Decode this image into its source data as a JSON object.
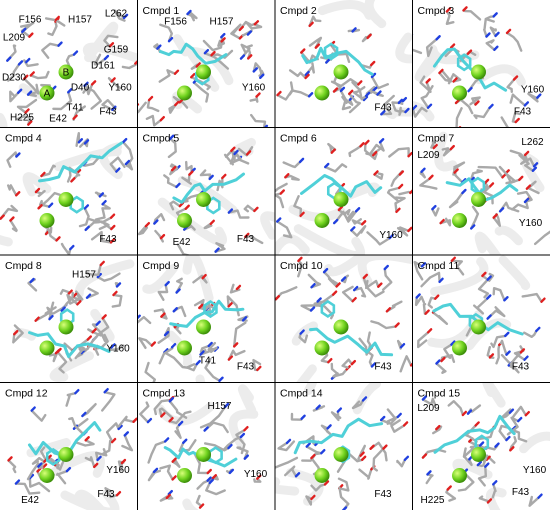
{
  "panels": [
    {
      "labels": [
        "F156",
        "H157",
        "L262",
        "L209",
        "G159",
        "D161",
        "D230",
        "D40",
        "Y160",
        "H225",
        "E42",
        "T41",
        "F43"
      ],
      "sphere_labels": [
        "A",
        "B"
      ]
    },
    {
      "title": "Cmpd 1",
      "labels": [
        "F156",
        "H157",
        "Y160"
      ]
    },
    {
      "title": "Cmpd 2",
      "labels": [
        "F43"
      ]
    },
    {
      "title": "Cmpd 3",
      "labels": [
        "Y160",
        "F43"
      ]
    },
    {
      "title": "Cmpd 4",
      "labels": [
        "F43"
      ]
    },
    {
      "title": "Cmpd 5",
      "labels": [
        "E42",
        "F43"
      ]
    },
    {
      "title": "Cmpd 6",
      "labels": [
        "Y160"
      ]
    },
    {
      "title": "Cmpd 7",
      "labels": [
        "L262",
        "L209",
        "Y160"
      ]
    },
    {
      "title": "Cmpd 8",
      "labels": [
        "H157",
        "Y160"
      ]
    },
    {
      "title": "Cmpd 9",
      "labels": [
        "T41",
        "F43"
      ]
    },
    {
      "title": "Cmpd 10",
      "labels": [
        "F43"
      ]
    },
    {
      "title": "Cmpd 11",
      "labels": [
        "F43"
      ]
    },
    {
      "title": "Cmpd 12",
      "labels": [
        "Y160",
        "E42",
        "F43"
      ]
    },
    {
      "title": "Cmpd 13",
      "labels": [
        "H157",
        "Y160"
      ]
    },
    {
      "title": "Cmpd 14",
      "labels": [
        "F43"
      ]
    },
    {
      "title": "Cmpd 15",
      "labels": [
        "L209",
        "Y160",
        "H225",
        "F43"
      ]
    }
  ]
}
